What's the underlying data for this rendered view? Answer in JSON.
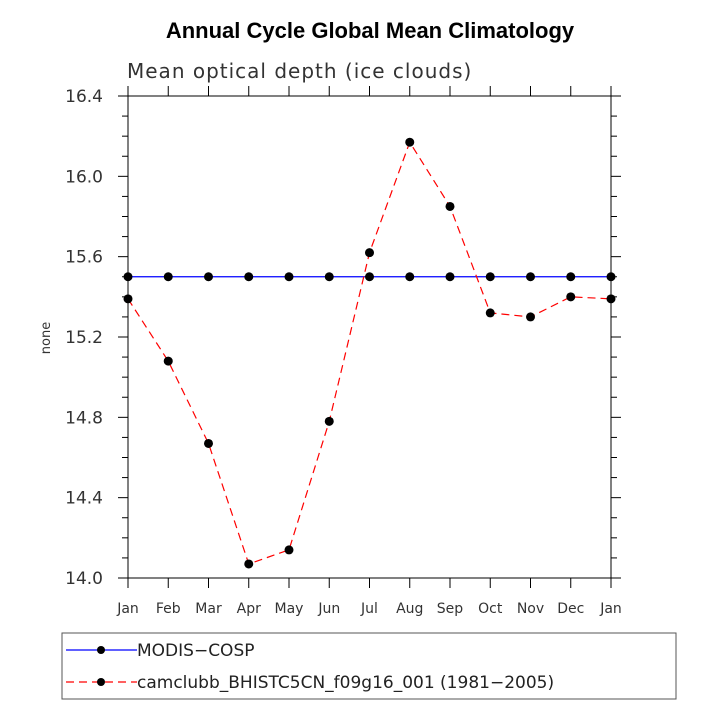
{
  "chart_data": {
    "type": "line",
    "title": "Annual Cycle Global Mean Climatology",
    "subtitle": "Mean optical depth (ice clouds)",
    "xlabel": "",
    "ylabel": "none",
    "ylim": [
      14.0,
      16.4
    ],
    "yticks": [
      "14.0",
      "14.4",
      "14.8",
      "15.2",
      "15.6",
      "16.0",
      "16.4"
    ],
    "categories": [
      "Jan",
      "Feb",
      "Mar",
      "Apr",
      "May",
      "Jun",
      "Jul",
      "Aug",
      "Sep",
      "Oct",
      "Nov",
      "Dec",
      "Jan"
    ],
    "series": [
      {
        "name": "MODIS−COSP",
        "color": "#0000ff",
        "style": "solid",
        "values": [
          15.5,
          15.5,
          15.5,
          15.5,
          15.5,
          15.5,
          15.5,
          15.5,
          15.5,
          15.5,
          15.5,
          15.5,
          15.5
        ]
      },
      {
        "name": "camclubb_BHISTC5CN_f09g16_001 (1981−2005)",
        "color": "#ff0000",
        "style": "dashed",
        "values": [
          15.39,
          15.08,
          14.67,
          14.07,
          14.14,
          14.78,
          15.62,
          16.17,
          15.85,
          15.32,
          15.3,
          15.4,
          15.39
        ]
      }
    ]
  }
}
